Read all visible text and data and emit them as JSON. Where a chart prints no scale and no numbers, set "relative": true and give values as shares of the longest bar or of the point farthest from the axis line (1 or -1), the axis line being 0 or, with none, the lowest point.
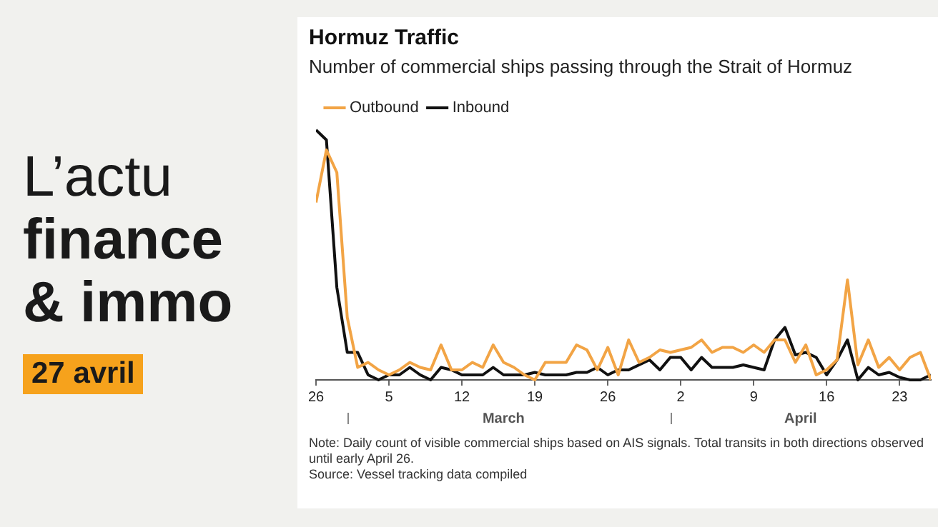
{
  "chart_data": {
    "type": "line",
    "title": "Hormuz Traffic",
    "subtitle": "Number of commercial ships passing through the Strait of Hormuz",
    "x": [
      "--02-26",
      "--02-27",
      "--02-28",
      "--03-01",
      "--03-02",
      "--03-03",
      "--03-04",
      "--03-05",
      "--03-06",
      "--03-07",
      "--03-08",
      "--03-09",
      "--03-10",
      "--03-11",
      "--03-12",
      "--03-13",
      "--03-14",
      "--03-15",
      "--03-16",
      "--03-17",
      "--03-18",
      "--03-19",
      "--03-20",
      "--03-21",
      "--03-22",
      "--03-23",
      "--03-24",
      "--03-25",
      "--03-26",
      "--03-27",
      "--03-28",
      "--03-29",
      "--03-30",
      "--03-31",
      "--04-01",
      "--04-02",
      "--04-03",
      "--04-04",
      "--04-05",
      "--04-06",
      "--04-07",
      "--04-08",
      "--04-09",
      "--04-10",
      "--04-11",
      "--04-12",
      "--04-13",
      "--04-14",
      "--04-15",
      "--04-16",
      "--04-17",
      "--04-18",
      "--04-19",
      "--04-20",
      "--04-21",
      "--04-22",
      "--04-23",
      "--04-24",
      "--04-25",
      "--04-26"
    ],
    "relative": true,
    "series": [
      {
        "name": "Outbound",
        "color": "#f2a445",
        "values": [
          0.71,
          0.92,
          0.83,
          0.25,
          0.05,
          0.07,
          0.04,
          0.02,
          0.04,
          0.07,
          0.05,
          0.04,
          0.14,
          0.04,
          0.04,
          0.07,
          0.05,
          0.14,
          0.07,
          0.05,
          0.02,
          0,
          0.07,
          0.07,
          0.07,
          0.14,
          0.12,
          0.04,
          0.13,
          0.02,
          0.16,
          0.07,
          0.09,
          0.12,
          0.11,
          0.12,
          0.13,
          0.16,
          0.11,
          0.13,
          0.13,
          0.11,
          0.14,
          0.11,
          0.16,
          0.16,
          0.07,
          0.14,
          0.02,
          0.04,
          0.08,
          0.4,
          0.06,
          0.16,
          0.05,
          0.09,
          0.04,
          0.09,
          0.11,
          0
        ]
      },
      {
        "name": "Inbound",
        "color": "#111111",
        "values": [
          1,
          0.96,
          0.37,
          0.11,
          0.11,
          0.02,
          0,
          0.02,
          0.02,
          0.05,
          0.02,
          0,
          0.05,
          0.04,
          0.02,
          0.02,
          0.02,
          0.05,
          0.02,
          0.02,
          0.02,
          0.03,
          0.02,
          0.02,
          0.02,
          0.03,
          0.03,
          0.05,
          0.02,
          0.04,
          0.04,
          0.06,
          0.08,
          0.04,
          0.09,
          0.09,
          0.04,
          0.09,
          0.05,
          0.05,
          0.05,
          0.06,
          0.05,
          0.04,
          0.16,
          0.21,
          0.1,
          0.11,
          0.09,
          0.02,
          0.08,
          0.16,
          0,
          0.05,
          0.02,
          0.03,
          0.01,
          0,
          0,
          0.02
        ]
      }
    ],
    "xlim": [
      "--02-26",
      "--04-26"
    ],
    "xticks": [
      {
        "value": "--02-26",
        "label": "26"
      },
      {
        "value": "--03-05",
        "label": "5"
      },
      {
        "value": "--03-12",
        "label": "12"
      },
      {
        "value": "--03-19",
        "label": "19"
      },
      {
        "value": "--03-26",
        "label": "26"
      },
      {
        "value": "--04-02",
        "label": "2"
      },
      {
        "value": "--04-09",
        "label": "9"
      },
      {
        "value": "--04-16",
        "label": "16"
      },
      {
        "value": "--04-23",
        "label": "23"
      }
    ],
    "legend": "top left",
    "marker": "none",
    "line_style": "solid",
    "grid": false,
    "annotations": [
      "March",
      "April",
      "Note: Daily count of visible commercial ships based on AIS signals. Total transits in both directions observed until early April 26.",
      "Source: Vessel tracking data compiled",
      "L’actu",
      "finance",
      "& immo",
      "27 avril"
    ]
  }
}
